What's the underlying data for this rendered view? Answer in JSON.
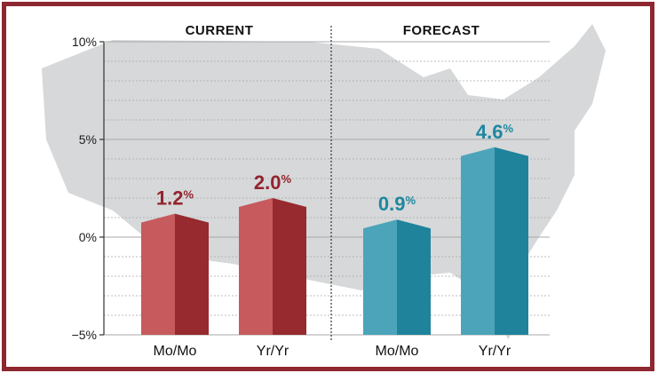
{
  "sections": [
    {
      "label": "CURRENT",
      "color": "#93232c"
    },
    {
      "label": "FORECAST",
      "color": "#1f87a0"
    }
  ],
  "colors": {
    "frame": "#8e2730",
    "map": "#d6d8d9",
    "grid": "#a9a9a9",
    "current_light": "#c65a5d",
    "current_dark": "#962a2e",
    "forecast_light": "#4ca4ba",
    "forecast_dark": "#1f839b"
  },
  "chart_data": {
    "type": "bar",
    "y_ticks": [
      "10%",
      "5%",
      "0%",
      "−5%"
    ],
    "ylim": [
      -5,
      10
    ],
    "grid": true,
    "bars": [
      {
        "section": "CURRENT",
        "category": "Mo/Mo",
        "value": 1.2,
        "label_num": "1.2",
        "label_unit": "%"
      },
      {
        "section": "CURRENT",
        "category": "Yr/Yr",
        "value": 2.0,
        "label_num": "2.0",
        "label_unit": "%"
      },
      {
        "section": "FORECAST",
        "category": "Mo/Mo",
        "value": 0.9,
        "label_num": "0.9",
        "label_unit": "%"
      },
      {
        "section": "FORECAST",
        "category": "Yr/Yr",
        "value": 4.6,
        "label_num": "4.6",
        "label_unit": "%"
      }
    ]
  }
}
